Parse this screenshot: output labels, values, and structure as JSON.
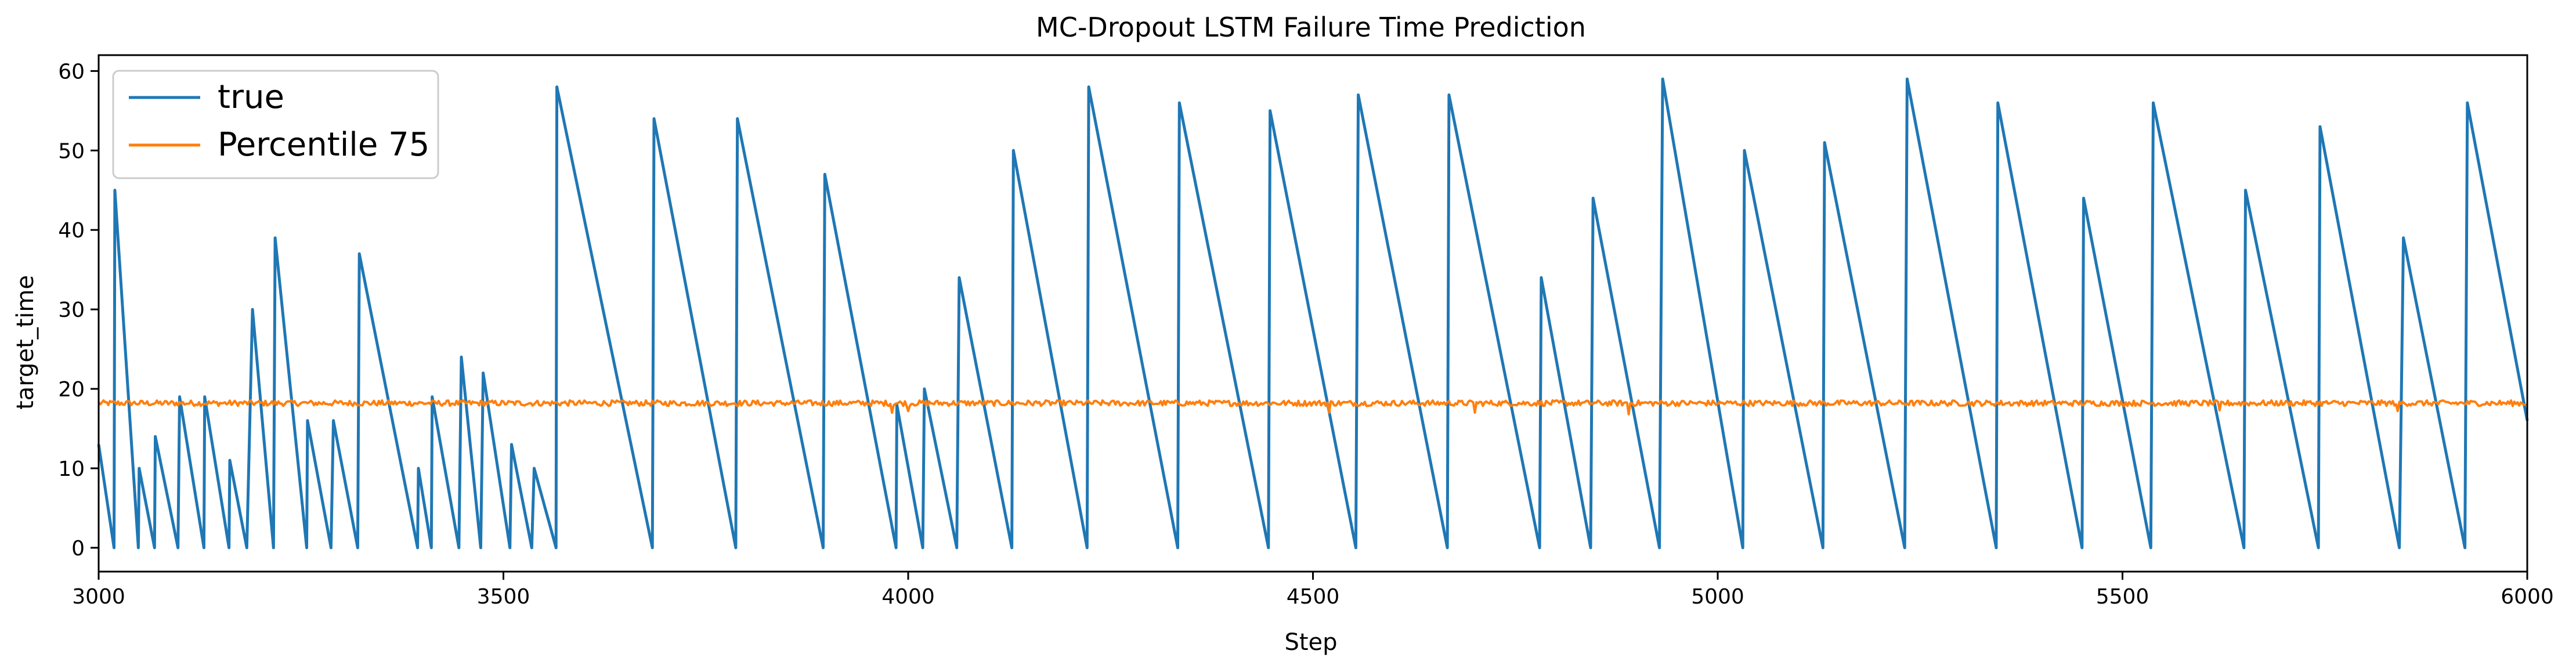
{
  "chart_data": {
    "type": "line",
    "title": "MC-Dropout LSTM Failure Time Prediction",
    "xlabel": "Step",
    "ylabel": "target_time",
    "xlim": [
      3000,
      6000
    ],
    "ylim": [
      -3,
      62
    ],
    "x_ticks": [
      3000,
      3500,
      4000,
      4500,
      5000,
      5500,
      6000
    ],
    "y_ticks": [
      0,
      10,
      20,
      30,
      40,
      50,
      60
    ],
    "grid": false,
    "legend_position": "upper-left",
    "series": [
      {
        "name": "true",
        "color": "#1f77b4",
        "pattern": "sawtooth",
        "cycles": [
          [
            3000,
            13,
            3019,
            0
          ],
          [
            3020,
            45,
            3049,
            0
          ],
          [
            3050,
            10,
            3069,
            0
          ],
          [
            3070,
            14,
            3098,
            0
          ],
          [
            3100,
            19,
            3130,
            0
          ],
          [
            3131,
            19,
            3161,
            0
          ],
          [
            3162,
            11,
            3183,
            0
          ],
          [
            3190,
            30,
            3216,
            0
          ],
          [
            3218,
            39,
            3257,
            0
          ],
          [
            3258,
            16,
            3287,
            0
          ],
          [
            3290,
            16,
            3320,
            0
          ],
          [
            3322,
            37,
            3394,
            0
          ],
          [
            3395,
            10,
            3411,
            0
          ],
          [
            3412,
            19,
            3445,
            0
          ],
          [
            3448,
            24,
            3472,
            0
          ],
          [
            3475,
            22,
            3508,
            0
          ],
          [
            3510,
            13,
            3535,
            0
          ],
          [
            3538,
            10,
            3565,
            0
          ],
          [
            3566,
            58,
            3684,
            0
          ],
          [
            3686,
            54,
            3787,
            0
          ],
          [
            3789,
            54,
            3895,
            0
          ],
          [
            3897,
            47,
            3985,
            0
          ],
          [
            3986,
            18,
            4018,
            0
          ],
          [
            4020,
            20,
            4060,
            0
          ],
          [
            4063,
            34,
            4128,
            0
          ],
          [
            4130,
            50,
            4221,
            0
          ],
          [
            4223,
            58,
            4333,
            0
          ],
          [
            4335,
            56,
            4445,
            0
          ],
          [
            4447,
            55,
            4553,
            0
          ],
          [
            4556,
            57,
            4666,
            0
          ],
          [
            4668,
            57,
            4780,
            0
          ],
          [
            4782,
            34,
            4843,
            0
          ],
          [
            4846,
            44,
            4928,
            0
          ],
          [
            4932,
            59,
            5031,
            0
          ],
          [
            5033,
            50,
            5130,
            0
          ],
          [
            5132,
            51,
            5231,
            0
          ],
          [
            5234,
            59,
            5344,
            0
          ],
          [
            5346,
            56,
            5450,
            0
          ],
          [
            5452,
            44,
            5535,
            0
          ],
          [
            5538,
            56,
            5650,
            0
          ],
          [
            5652,
            45,
            5742,
            0
          ],
          [
            5744,
            53,
            5842,
            0
          ],
          [
            5847,
            39,
            5923,
            0
          ],
          [
            5926,
            56,
            6000,
            16
          ]
        ]
      },
      {
        "name": "Percentile 75",
        "color": "#ff7f0e",
        "pattern": "noisy-constant",
        "level": 18.2,
        "noise": 0.35,
        "dips": [
          [
            3745,
            17.0
          ],
          [
            3980,
            17.0
          ],
          [
            4000,
            17.2
          ],
          [
            4520,
            17.0
          ],
          [
            4700,
            17.0
          ],
          [
            4890,
            16.8
          ],
          [
            5620,
            17.3
          ],
          [
            5840,
            17.2
          ]
        ]
      }
    ]
  }
}
